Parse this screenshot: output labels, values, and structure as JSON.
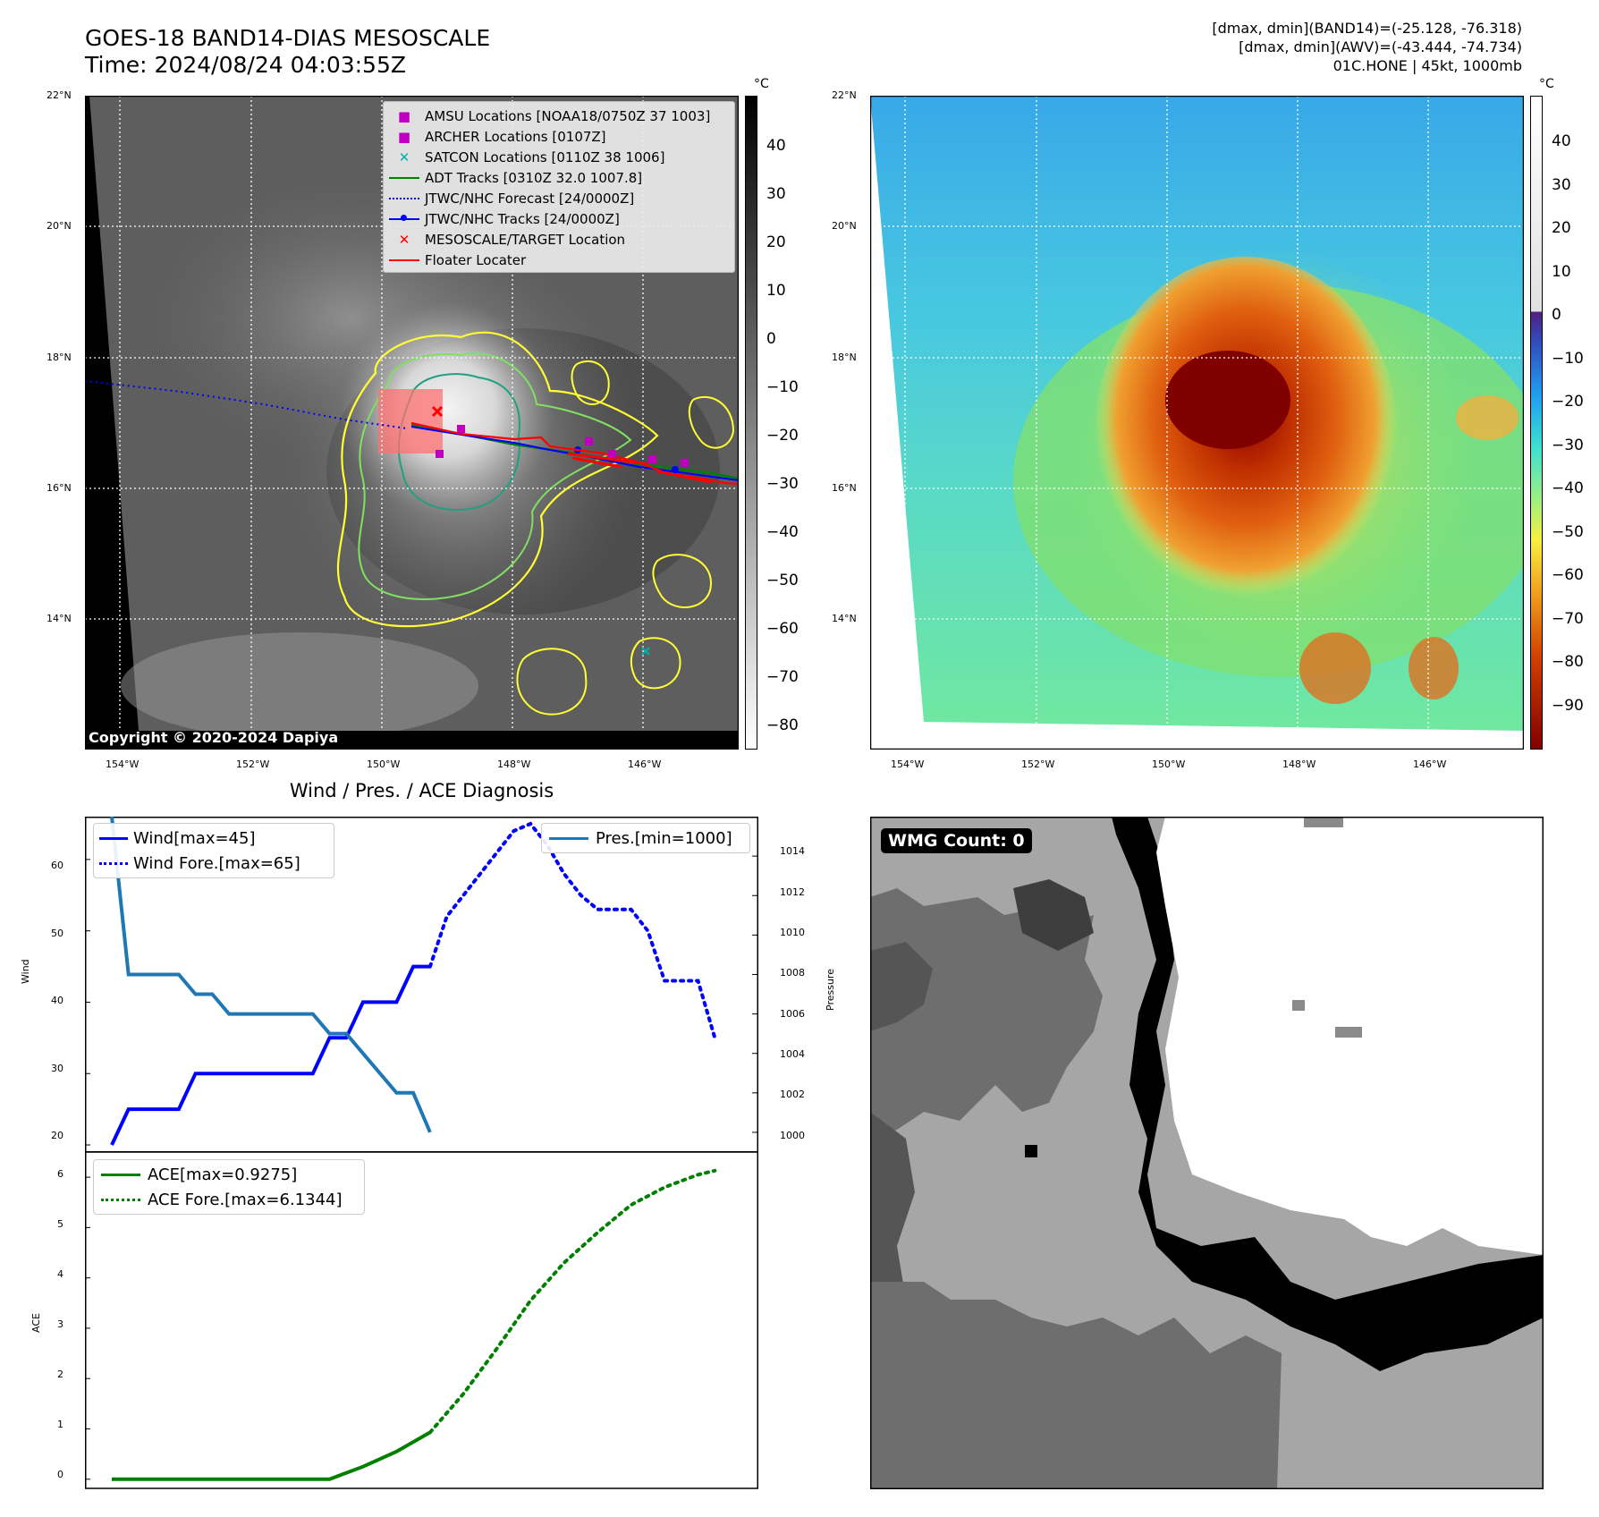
{
  "header": {
    "title_line1": "GOES-18 BAND14-DIAS MESOSCALE",
    "title_line2": "Time: 2024/08/24 04:03:55Z",
    "right_line1": "[dmax, dmin](BAND14)=(-25.128, -76.318)",
    "right_line2": "[dmax, dmin](AWV)=(-43.444, -74.734)",
    "right_line3": "01C.HONE | 45kt, 1000mb"
  },
  "maps": {
    "lat_labels": [
      "22°N",
      "20°N",
      "18°N",
      "16°N",
      "14°N"
    ],
    "lon_labels": [
      "154°W",
      "152°W",
      "150°W",
      "148°W",
      "146°W"
    ],
    "copyright": "Copyright © 2020-2024 Dapiya",
    "colorbar1_unit": "°C",
    "colorbar1_ticks": [
      "40",
      "30",
      "20",
      "10",
      "0",
      "−10",
      "−20",
      "−30",
      "−40",
      "−50",
      "−60",
      "−70",
      "−80"
    ],
    "colorbar2_unit": "°C",
    "colorbar2_ticks": [
      "40",
      "30",
      "20",
      "10",
      "0",
      "−10",
      "−20",
      "−30",
      "−40",
      "−50",
      "−60",
      "−70",
      "−80",
      "−90"
    ],
    "legend": [
      {
        "label": "AMSU Locations [NOAA18/0750Z 37 1003]",
        "color": "#c000c0",
        "marker": "square"
      },
      {
        "label": "ARCHER Locations [0107Z]",
        "color": "#c000c0",
        "marker": "square"
      },
      {
        "label": "SATCON Locations [0110Z 38 1006]",
        "color": "#00b0b0",
        "marker": "x"
      },
      {
        "label": "ADT Tracks [0310Z 32.0 1007.8]",
        "color": "#008000",
        "marker": "line"
      },
      {
        "label": "JTWC/NHC Forecast [24/0000Z]",
        "color": "#0000ff",
        "marker": "dotted"
      },
      {
        "label": "JTWC/NHC Tracks [24/0000Z]",
        "color": "#0000ff",
        "marker": "line-dot"
      },
      {
        "label": "MESOSCALE/TARGET Location",
        "color": "#ff0000",
        "marker": "x"
      },
      {
        "label": "Floater Locater",
        "color": "#ff0000",
        "marker": "line"
      }
    ]
  },
  "diagnosis": {
    "title": "Wind / Pres. / ACE Diagnosis",
    "wind_ylabel": "Wind",
    "pres_ylabel": "Pressure",
    "ace_ylabel": "ACE",
    "wind_legend": "Wind[max=45]",
    "wind_fore_legend": "Wind Fore.[max=65]",
    "pres_legend": "Pres.[min=1000]",
    "ace_legend": "ACE[max=0.9275]",
    "ace_fore_legend": "ACE Fore.[max=6.1344]",
    "wind_ticks": [
      "60",
      "50",
      "40",
      "30",
      "20"
    ],
    "pres_ticks": [
      "1014",
      "1012",
      "1010",
      "1008",
      "1006",
      "1004",
      "1002",
      "1000"
    ],
    "ace_ticks": [
      "6",
      "5",
      "4",
      "3",
      "2",
      "1",
      "0"
    ]
  },
  "wmg": {
    "label": "WMG Count: 0"
  },
  "chart_data": [
    {
      "type": "line",
      "title": "Wind / Pres. / ACE Diagnosis",
      "ylabel": "Wind",
      "ylim": [
        19,
        66
      ],
      "xlim": [
        0,
        37
      ],
      "series": [
        {
          "name": "Wind[max=45]",
          "color": "#0000ff",
          "style": "solid",
          "x": [
            0,
            1,
            2,
            3,
            4,
            5,
            6,
            7,
            8,
            9,
            10,
            11,
            12,
            13,
            14,
            15,
            16,
            17,
            18,
            19
          ],
          "values": [
            20,
            25,
            25,
            25,
            25,
            30,
            30,
            30,
            30,
            30,
            30,
            30,
            30,
            35,
            35,
            40,
            40,
            40,
            45,
            45
          ]
        },
        {
          "name": "Wind Fore.[max=65]",
          "color": "#0000ff",
          "style": "dotted",
          "x": [
            19,
            20,
            21,
            22,
            23,
            24,
            25,
            26,
            27,
            28,
            29,
            30,
            31,
            32,
            33,
            34,
            35,
            36
          ],
          "values": [
            45,
            52,
            55,
            58,
            61,
            64,
            65,
            62,
            58,
            55,
            53,
            53,
            53,
            50,
            43,
            43,
            43,
            35
          ]
        }
      ]
    },
    {
      "type": "line",
      "ylabel": "Pressure",
      "ylim": [
        999,
        1016
      ],
      "xlim": [
        0,
        37
      ],
      "series": [
        {
          "name": "Pres.[min=1000]",
          "color": "#1f77b4",
          "style": "solid",
          "x": [
            0,
            1,
            2,
            3,
            4,
            5,
            6,
            7,
            8,
            9,
            10,
            11,
            12,
            13,
            14,
            15,
            16,
            17,
            18,
            19
          ],
          "values": [
            1016,
            1008,
            1008,
            1008,
            1008,
            1007,
            1007,
            1006,
            1006,
            1006,
            1006,
            1006,
            1006,
            1005,
            1005,
            1004,
            1003,
            1002,
            1002,
            1000
          ]
        }
      ]
    },
    {
      "type": "line",
      "ylabel": "ACE",
      "ylim": [
        -0.2,
        6.5
      ],
      "xlim": [
        0,
        37
      ],
      "series": [
        {
          "name": "ACE[max=0.9275]",
          "color": "#008000",
          "style": "solid",
          "x": [
            0,
            5,
            10,
            13,
            15,
            17,
            19
          ],
          "values": [
            0,
            0,
            0,
            0,
            0.25,
            0.55,
            0.93
          ]
        },
        {
          "name": "ACE Fore.[max=6.1344]",
          "color": "#008000",
          "style": "dotted",
          "x": [
            19,
            21,
            23,
            25,
            27,
            29,
            31,
            33,
            35,
            36
          ],
          "values": [
            0.93,
            1.7,
            2.6,
            3.55,
            4.3,
            4.9,
            5.45,
            5.8,
            6.05,
            6.13
          ]
        }
      ]
    }
  ]
}
